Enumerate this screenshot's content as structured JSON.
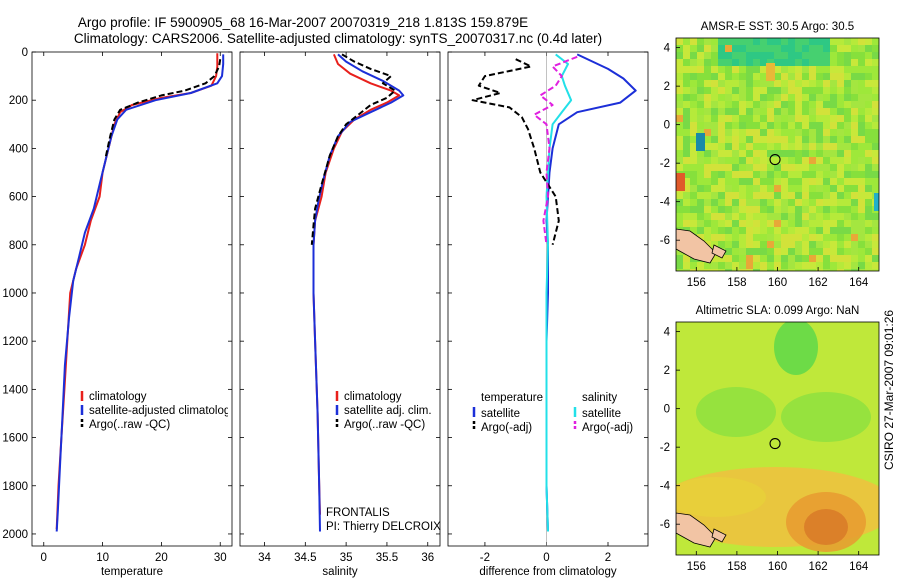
{
  "title_line1": "Argo profile: IF 5900905_68 16-Mar-2007 20070319_218 1.813S 159.879E",
  "title_line2": "Climatology: CARS2006. Satellite-adjusted climatology: synTS_20070317.nc (0.4d later)",
  "side_label": "CSIRO 27-Mar-2007 09:01:26",
  "annotation": {
    "line1": "FRONTALIS",
    "line2": "PI: Thierry DELCROIX"
  },
  "colors": {
    "clim": "#e8201c",
    "sat": "#1c2fd8",
    "argo": "#000000",
    "sal_sat": "#22e0e8",
    "sal_argo": "#e020e0"
  },
  "chart_data": [
    {
      "type": "line",
      "name": "temperature",
      "xlabel": "temperature",
      "xlim": [
        -2,
        32
      ],
      "ylim": [
        0,
        2050
      ],
      "y_reversed": true,
      "xticks": [
        0,
        10,
        20,
        30
      ],
      "yticks": [
        0,
        200,
        400,
        600,
        800,
        1000,
        1200,
        1400,
        1600,
        1800,
        2000
      ],
      "legend": [
        "climatology",
        "satellite-adjusted climatology",
        "Argo(..raw -QC)"
      ],
      "series": [
        {
          "name": "climatology",
          "color": "clim",
          "dash": false,
          "points": [
            [
              29.5,
              5
            ],
            [
              29.5,
              60
            ],
            [
              29.3,
              100
            ],
            [
              28.5,
              140
            ],
            [
              25,
              170
            ],
            [
              20,
              190
            ],
            [
              15,
              220
            ],
            [
              13,
              250
            ],
            [
              12,
              300
            ],
            [
              11,
              400
            ],
            [
              10,
              500
            ],
            [
              9.5,
              600
            ],
            [
              8,
              700
            ],
            [
              7,
              800
            ],
            [
              5.5,
              900
            ],
            [
              4.5,
              1000
            ],
            [
              4,
              1200
            ],
            [
              3.5,
              1400
            ],
            [
              3,
              1600
            ],
            [
              2.5,
              1800
            ],
            [
              2.2,
              1980
            ]
          ]
        },
        {
          "name": "satellite-adjusted climatology",
          "color": "sat",
          "dash": false,
          "points": [
            [
              30.5,
              10
            ],
            [
              30.5,
              50
            ],
            [
              30.3,
              100
            ],
            [
              29.5,
              130
            ],
            [
              25,
              170
            ],
            [
              19,
              200
            ],
            [
              14,
              240
            ],
            [
              12.5,
              280
            ],
            [
              11.5,
              350
            ],
            [
              10.5,
              450
            ],
            [
              9.5,
              550
            ],
            [
              8.5,
              650
            ],
            [
              7,
              750
            ],
            [
              6,
              850
            ],
            [
              5,
              950
            ],
            [
              4.3,
              1100
            ],
            [
              3.6,
              1300
            ],
            [
              3.2,
              1500
            ],
            [
              2.8,
              1700
            ],
            [
              2.4,
              1900
            ],
            [
              2.2,
              1990
            ]
          ]
        },
        {
          "name": "Argo(..raw -QC)",
          "color": "argo",
          "dash": true,
          "points": [
            [
              30,
              30
            ],
            [
              29.8,
              60
            ],
            [
              29,
              100
            ],
            [
              27.5,
              130
            ],
            [
              24,
              160
            ],
            [
              20,
              180
            ],
            [
              16,
              210
            ],
            [
              13,
              240
            ],
            [
              12,
              280
            ],
            [
              11.3,
              350
            ],
            [
              10.5,
              440
            ]
          ]
        }
      ]
    },
    {
      "type": "line",
      "name": "salinity",
      "xlabel": "salinity",
      "xlim": [
        33.7,
        36.15
      ],
      "ylim": [
        0,
        2050
      ],
      "y_reversed": true,
      "xticks": [
        34,
        34.5,
        35,
        35.5,
        36
      ],
      "legend": [
        "climatology",
        "satellite adj. clim.",
        "Argo(..raw -QC)"
      ],
      "series": [
        {
          "name": "climatology",
          "color": "clim",
          "dash": false,
          "points": [
            [
              34.85,
              10
            ],
            [
              34.9,
              50
            ],
            [
              35.05,
              90
            ],
            [
              35.3,
              130
            ],
            [
              35.55,
              160
            ],
            [
              35.65,
              180
            ],
            [
              35.5,
              210
            ],
            [
              35.3,
              240
            ],
            [
              35.1,
              280
            ],
            [
              34.95,
              330
            ],
            [
              34.85,
              400
            ],
            [
              34.75,
              500
            ],
            [
              34.7,
              600
            ],
            [
              34.62,
              700
            ],
            [
              34.6,
              800
            ],
            [
              34.6,
              1000
            ],
            [
              34.62,
              1200
            ],
            [
              34.65,
              1500
            ],
            [
              34.67,
              1800
            ],
            [
              34.68,
              1920
            ]
          ]
        },
        {
          "name": "satellite adj. clim.",
          "color": "sat",
          "dash": false,
          "points": [
            [
              34.9,
              10
            ],
            [
              35,
              40
            ],
            [
              35.2,
              80
            ],
            [
              35.45,
              120
            ],
            [
              35.65,
              160
            ],
            [
              35.7,
              180
            ],
            [
              35.55,
              210
            ],
            [
              35.3,
              250
            ],
            [
              35.05,
              290
            ],
            [
              34.9,
              350
            ],
            [
              34.8,
              430
            ],
            [
              34.72,
              530
            ],
            [
              34.66,
              620
            ],
            [
              34.62,
              700
            ],
            [
              34.6,
              800
            ],
            [
              34.6,
              1000
            ],
            [
              34.62,
              1200
            ],
            [
              34.65,
              1500
            ],
            [
              34.67,
              1800
            ],
            [
              34.68,
              1990
            ]
          ]
        },
        {
          "name": "Argo(..raw -QC)",
          "color": "argo",
          "dash": true,
          "points": [
            [
              34.95,
              10
            ],
            [
              35.1,
              40
            ],
            [
              35.3,
              70
            ],
            [
              35.55,
              100
            ],
            [
              35.45,
              130
            ],
            [
              35.6,
              160
            ],
            [
              35.5,
              190
            ],
            [
              35.3,
              220
            ],
            [
              35.15,
              260
            ],
            [
              35,
              300
            ],
            [
              34.9,
              350
            ],
            [
              34.8,
              430
            ],
            [
              34.7,
              550
            ],
            [
              34.62,
              650
            ],
            [
              34.6,
              720
            ],
            [
              34.58,
              800
            ]
          ]
        }
      ]
    },
    {
      "type": "line",
      "name": "difference",
      "xlabel": "difference from climatology",
      "xlim": [
        -3.2,
        3.3
      ],
      "ylim": [
        0,
        2050
      ],
      "y_reversed": true,
      "xticks": [
        -2,
        0,
        2
      ],
      "legend_cols": [
        {
          "title": "temperature",
          "items": [
            "satellite",
            "Argo(-adj)"
          ]
        },
        {
          "title": "salinity",
          "items": [
            "satellite",
            "Argo(-adj)"
          ]
        }
      ],
      "series": [
        {
          "name": "temperature satellite",
          "color": "sat",
          "dash": false,
          "points": [
            [
              1,
              10
            ],
            [
              1.5,
              40
            ],
            [
              2,
              70
            ],
            [
              2.5,
              110
            ],
            [
              2.9,
              160
            ],
            [
              2.4,
              210
            ],
            [
              1,
              250
            ],
            [
              0.4,
              300
            ],
            [
              0.2,
              400
            ],
            [
              0.1,
              500
            ],
            [
              0.05,
              600
            ],
            [
              0,
              700
            ],
            [
              0.05,
              800
            ],
            [
              0.05,
              1000
            ],
            [
              0,
              1200
            ],
            [
              0,
              1500
            ],
            [
              0,
              1800
            ],
            [
              0.05,
              1990
            ]
          ]
        },
        {
          "name": "salinity satellite",
          "color": "sal_sat",
          "dash": false,
          "points": [
            [
              0.3,
              10
            ],
            [
              0.7,
              50
            ],
            [
              0.5,
              100
            ],
            [
              0.6,
              140
            ],
            [
              0.8,
              200
            ],
            [
              0.5,
              250
            ],
            [
              0.2,
              300
            ],
            [
              0.1,
              400
            ],
            [
              0.05,
              500
            ],
            [
              0,
              600
            ],
            [
              0.05,
              800
            ],
            [
              0,
              1000
            ],
            [
              0,
              1300
            ],
            [
              0,
              1600
            ],
            [
              0,
              1800
            ],
            [
              0.05,
              1990
            ]
          ]
        },
        {
          "name": "temperature Argo(-adj)",
          "color": "argo",
          "dash": true,
          "points": [
            [
              -1,
              30
            ],
            [
              -0.5,
              60
            ],
            [
              -2,
              100
            ],
            [
              -2.2,
              140
            ],
            [
              -1.5,
              170
            ],
            [
              -2.4,
              200
            ],
            [
              -1.2,
              230
            ],
            [
              -0.8,
              270
            ],
            [
              -0.6,
              320
            ],
            [
              -0.4,
              400
            ],
            [
              -0.2,
              500
            ],
            [
              0.3,
              600
            ],
            [
              0.4,
              700
            ],
            [
              0.2,
              800
            ]
          ]
        },
        {
          "name": "salinity Argo(-adj)",
          "color": "sal_argo",
          "dash": true,
          "points": [
            [
              1,
              20
            ],
            [
              0.2,
              60
            ],
            [
              0.5,
              100
            ],
            [
              0.3,
              140
            ],
            [
              -0.2,
              180
            ],
            [
              0.2,
              220
            ],
            [
              -0.4,
              260
            ],
            [
              0,
              300
            ],
            [
              0.1,
              400
            ],
            [
              0,
              500
            ],
            [
              0.05,
              600
            ],
            [
              -0.1,
              700
            ],
            [
              0,
              800
            ]
          ]
        }
      ]
    },
    {
      "type": "heatmap",
      "name": "sst-map",
      "title": "AMSR-E SST: 30.5  Argo: 30.5",
      "xlim": [
        155,
        165
      ],
      "ylim": [
        -7.6,
        4.5
      ],
      "xticks": [
        156,
        158,
        160,
        162,
        164
      ],
      "yticks": [
        -6,
        -4,
        -2,
        0,
        2,
        4
      ],
      "marker": [
        159.879,
        -1.813
      ]
    },
    {
      "type": "heatmap",
      "name": "sla-map",
      "title": "Altimetric SLA: 0.099  Argo: NaN",
      "xlim": [
        155,
        165
      ],
      "ylim": [
        -7.6,
        4.5
      ],
      "xticks": [
        156,
        158,
        160,
        162,
        164
      ],
      "yticks": [
        -6,
        -4,
        -2,
        0,
        2,
        4
      ],
      "marker": [
        159.879,
        -1.813
      ]
    }
  ]
}
